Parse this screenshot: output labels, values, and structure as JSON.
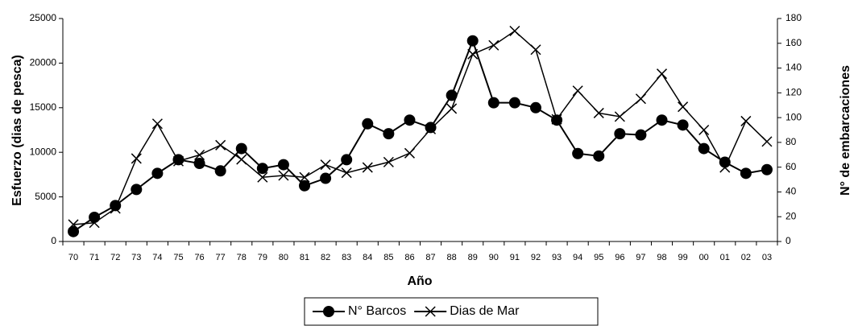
{
  "chart_data": {
    "type": "line",
    "x_label": "Año",
    "y_label": "Esfuerzo (dias de pesca)",
    "y2_label": "N° de embarcaciones",
    "categories": [
      "70",
      "71",
      "72",
      "73",
      "74",
      "75",
      "76",
      "77",
      "78",
      "79",
      "80",
      "81",
      "82",
      "83",
      "84",
      "85",
      "86",
      "87",
      "88",
      "89",
      "90",
      "91",
      "92",
      "93",
      "94",
      "95",
      "96",
      "97",
      "98",
      "99",
      "00",
      "01",
      "02",
      "03"
    ],
    "series": [
      {
        "name": "N° Barcos",
        "color": "#000000",
        "marker": "circle",
        "axis": "y2",
        "values": [
          8,
          19.5,
          29,
          42,
          55,
          66,
          63,
          57,
          75,
          59,
          62,
          45,
          51,
          66,
          95,
          87,
          98,
          92,
          118,
          162,
          112,
          112,
          108,
          98,
          71,
          69,
          87,
          86,
          98,
          94,
          75,
          64,
          55,
          58
        ]
      },
      {
        "name": "Dias de Mar",
        "color": "#000000",
        "marker": "x",
        "axis": "y",
        "values": [
          1900,
          2100,
          3700,
          9300,
          13200,
          9000,
          9700,
          10800,
          9200,
          7200,
          7400,
          7200,
          8600,
          7700,
          8300,
          8900,
          9900,
          12600,
          14900,
          21000,
          22000,
          23600,
          21500,
          13700,
          16900,
          14400,
          14000,
          16000,
          18800,
          15100,
          12500,
          8300,
          13500,
          11200
        ]
      }
    ],
    "ylim": [
      0,
      25000
    ],
    "yticks": [
      0,
      5000,
      10000,
      15000,
      20000,
      25000
    ],
    "y2lim": [
      0,
      180
    ],
    "y2ticks": [
      0,
      20,
      40,
      60,
      80,
      100,
      120,
      140,
      160,
      180
    ],
    "legend": "bottom",
    "grid": false
  }
}
